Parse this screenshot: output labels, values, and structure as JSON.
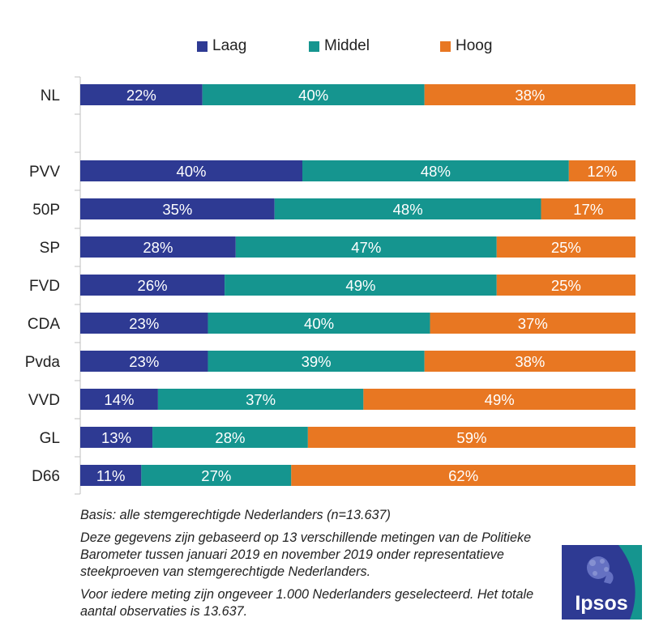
{
  "chart_data": {
    "type": "bar",
    "orientation": "horizontal",
    "stacked": true,
    "categories": [
      "NL",
      "PVV",
      "50P",
      "SP",
      "FVD",
      "CDA",
      "Pvda",
      "VVD",
      "GL",
      "D66"
    ],
    "series": [
      {
        "name": "Laag",
        "color": "#2E3A93",
        "values": [
          22,
          40,
          35,
          28,
          26,
          23,
          23,
          14,
          13,
          11
        ]
      },
      {
        "name": "Middel",
        "color": "#15958F",
        "values": [
          40,
          48,
          48,
          47,
          49,
          40,
          39,
          37,
          28,
          27
        ]
      },
      {
        "name": "Hoog",
        "color": "#E87722",
        "values": [
          38,
          12,
          17,
          25,
          25,
          37,
          38,
          49,
          59,
          62
        ]
      }
    ],
    "value_suffix": "%",
    "xlim": [
      0,
      100
    ],
    "legend_position": "top",
    "grid": false
  },
  "notes": [
    "Basis: alle stemgerechtigde Nederlanders (n=13.637)",
    "Deze gegevens zijn gebaseerd op 13 verschillende metingen van de Politieke Barometer tussen januari 2019 en november 2019 onder representatieve steekproeven van stemgerechtigde Nederlanders.",
    "Voor iedere meting zijn ongeveer 1.000 Nederlanders geselecteerd. Het totale aantal observaties is 13.637."
  ],
  "logo": {
    "text": "Ipsos",
    "bg_color": "#2E3A93",
    "accent_color": "#15958F"
  }
}
